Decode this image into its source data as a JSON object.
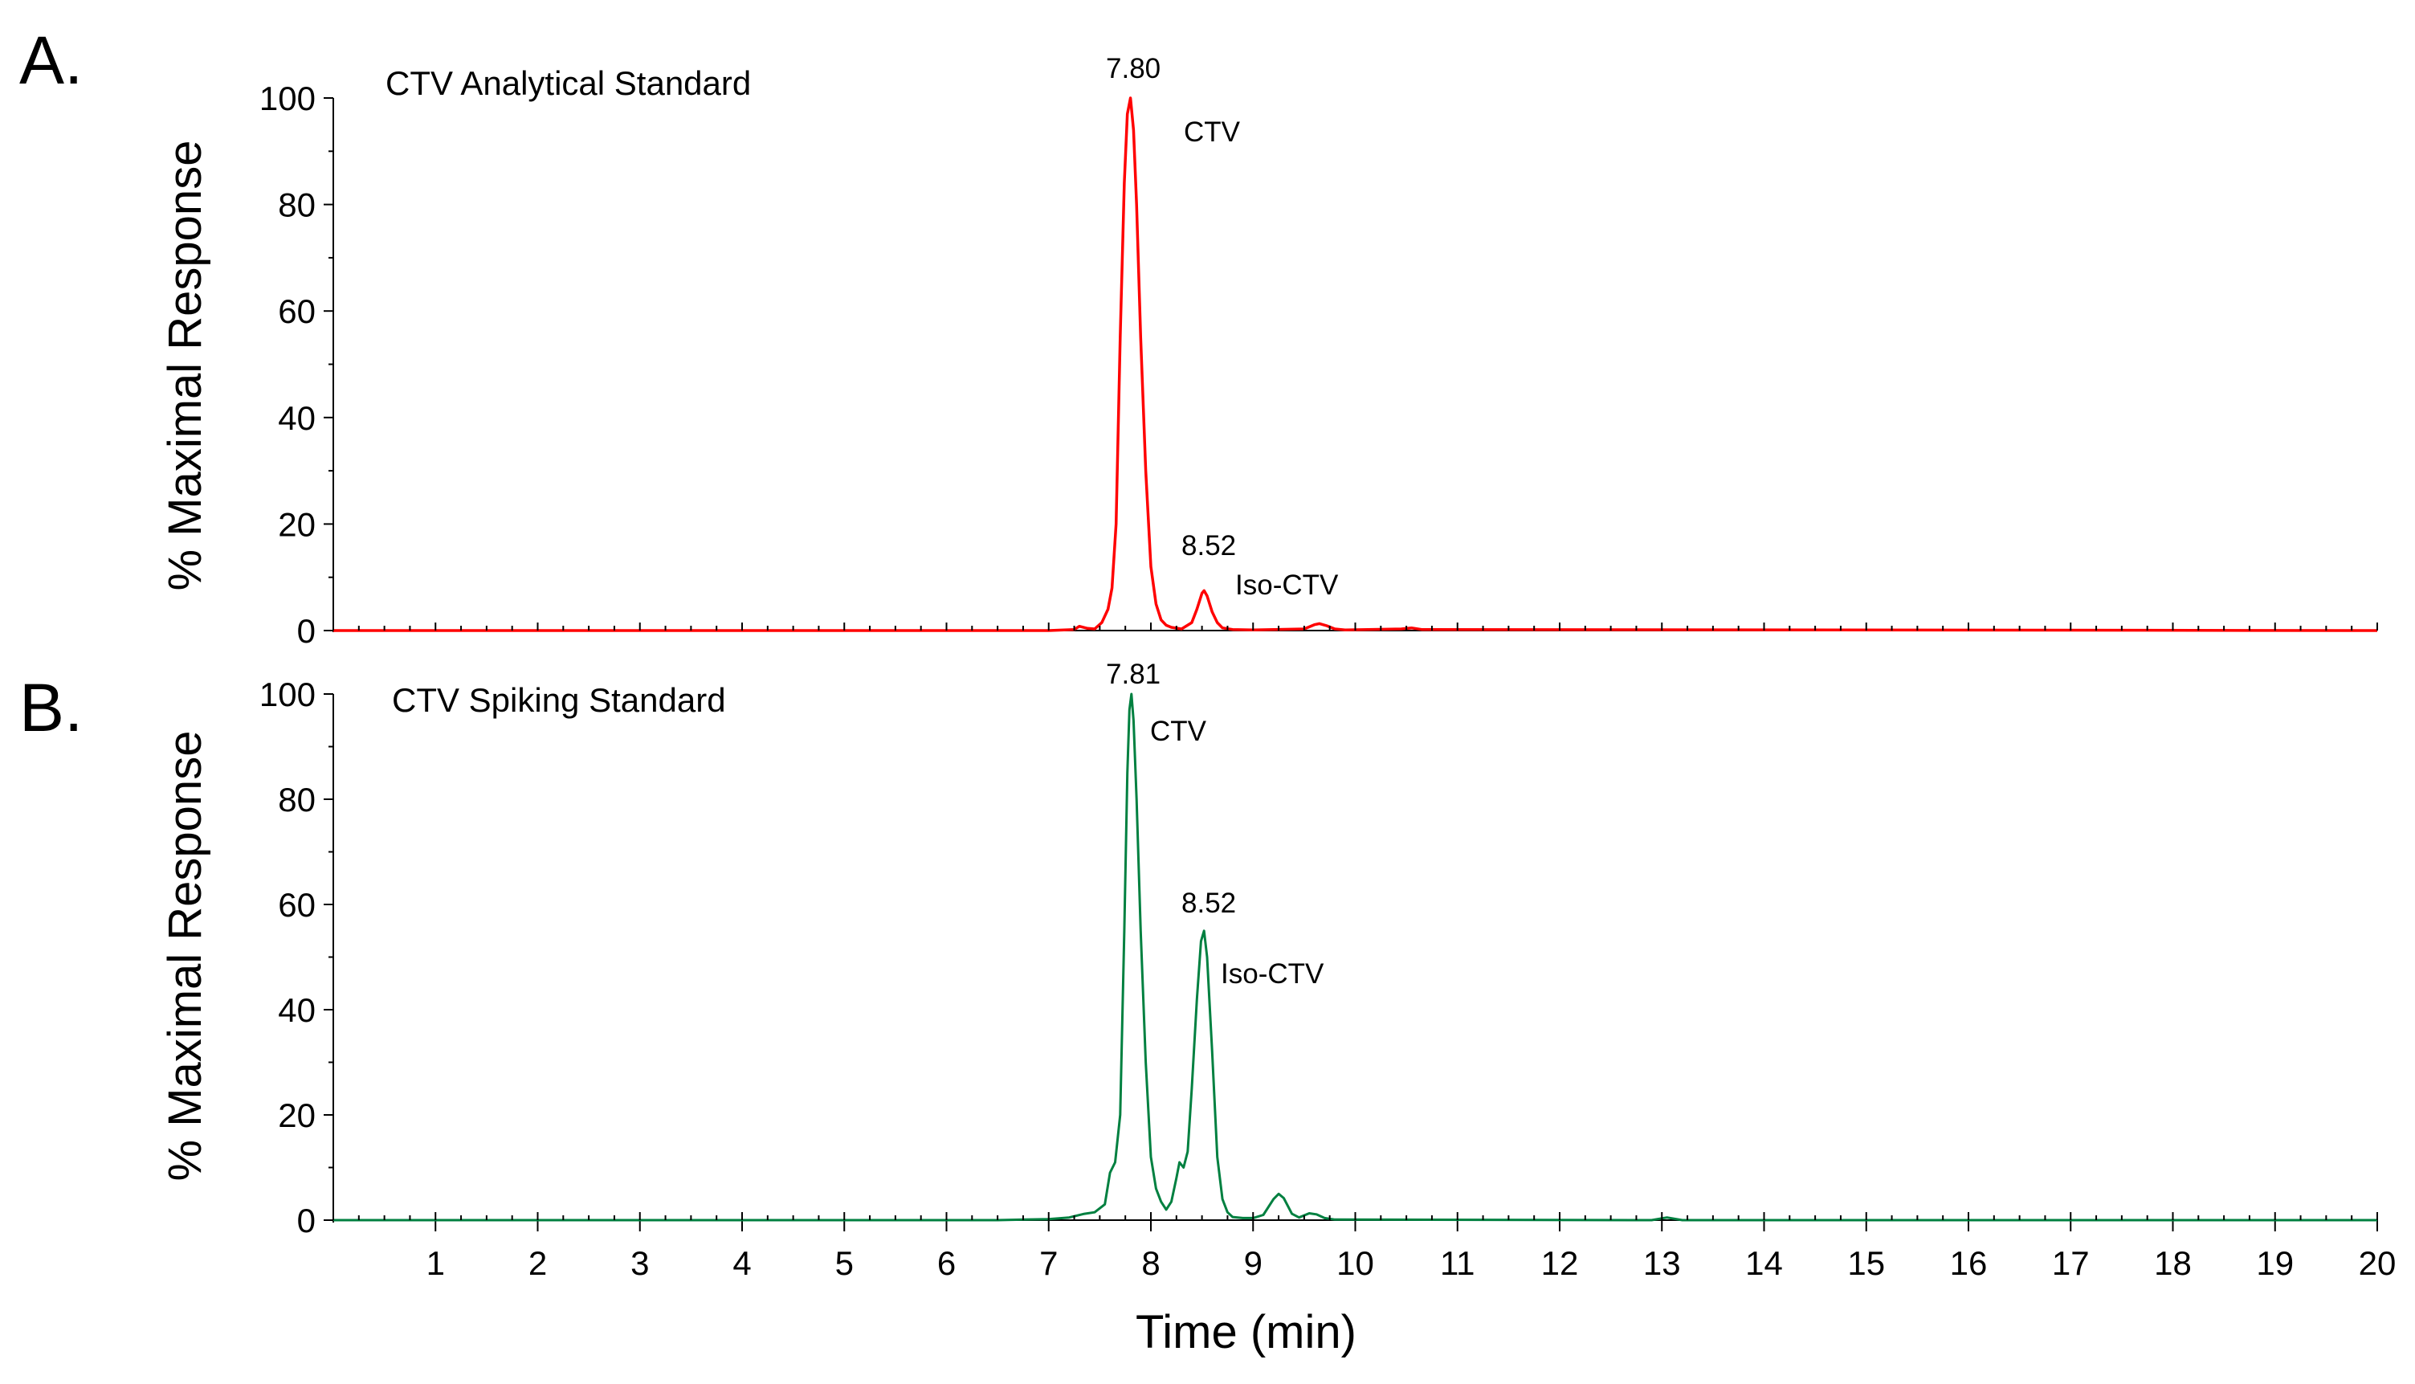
{
  "chart_data": [
    {
      "type": "line",
      "panel_label": "A.",
      "title": "CTV Analytical Standard",
      "xlabel": "",
      "ylabel": "% Maximal Response",
      "xlim": [
        0,
        20
      ],
      "ylim": [
        0,
        100
      ],
      "yticks": [
        0,
        20,
        40,
        60,
        80,
        100
      ],
      "xticks": [],
      "grid": false,
      "legend": "none",
      "series": [
        {
          "color": "#ff0000",
          "x": [
            0,
            7.0,
            7.25,
            7.3,
            7.38,
            7.45,
            7.52,
            7.58,
            7.62,
            7.66,
            7.7,
            7.74,
            7.77,
            7.8,
            7.83,
            7.86,
            7.9,
            7.95,
            8.0,
            8.05,
            8.1,
            8.15,
            8.2,
            8.3,
            8.4,
            8.45,
            8.5,
            8.52,
            8.55,
            8.6,
            8.65,
            8.7,
            8.8,
            9.0,
            9.5,
            9.6,
            9.65,
            9.72,
            9.8,
            9.9,
            10.45,
            10.55,
            10.65,
            20
          ],
          "y": [
            0,
            0,
            0.2,
            0.8,
            0.4,
            0.3,
            1.5,
            4,
            8,
            20,
            55,
            84,
            97,
            100,
            94,
            80,
            55,
            30,
            12,
            5,
            2,
            1,
            0.6,
            0.3,
            1.5,
            4,
            7,
            7.5,
            6.5,
            3.5,
            1.5,
            0.5,
            0.2,
            0.1,
            0.3,
            1.1,
            1.3,
            0.9,
            0.3,
            0.1,
            0.3,
            0.5,
            0.2,
            0
          ]
        }
      ],
      "annotations": [
        {
          "text": "7.80",
          "x": 7.8,
          "y": 100
        },
        {
          "text": "CTV",
          "x": 7.8,
          "y": 94
        },
        {
          "text": "8.52",
          "x": 8.52,
          "y": 7.5
        },
        {
          "text": "Iso-CTV",
          "x": 8.52,
          "y": 7.5
        }
      ]
    },
    {
      "type": "line",
      "panel_label": "B.",
      "title": "CTV Spiking Standard",
      "xlabel": "Time (min)",
      "ylabel": "% Maximal Response",
      "xlim": [
        0,
        20
      ],
      "ylim": [
        0,
        100
      ],
      "yticks": [
        0,
        20,
        40,
        60,
        80,
        100
      ],
      "xticks": [
        1,
        2,
        3,
        4,
        5,
        6,
        7,
        8,
        9,
        10,
        11,
        12,
        13,
        14,
        15,
        16,
        17,
        18,
        19,
        20
      ],
      "grid": false,
      "legend": "none",
      "series": [
        {
          "color": "#008040",
          "x": [
            0,
            6.5,
            7.0,
            7.2,
            7.35,
            7.45,
            7.55,
            7.6,
            7.65,
            7.7,
            7.74,
            7.77,
            7.79,
            7.81,
            7.83,
            7.86,
            7.9,
            7.95,
            8.0,
            8.05,
            8.1,
            8.15,
            8.2,
            8.25,
            8.28,
            8.32,
            8.36,
            8.4,
            8.45,
            8.49,
            8.52,
            8.55,
            8.6,
            8.65,
            8.7,
            8.75,
            8.8,
            8.9,
            9.0,
            9.1,
            9.2,
            9.25,
            9.3,
            9.38,
            9.45,
            9.55,
            9.62,
            9.7,
            9.8,
            12.9,
            13.05,
            13.2,
            20
          ],
          "y": [
            0,
            0,
            0.2,
            0.5,
            1.2,
            1.5,
            3,
            9,
            11,
            20,
            55,
            85,
            97,
            100,
            95,
            80,
            55,
            30,
            12,
            6,
            3.5,
            2,
            3.5,
            8,
            11,
            10,
            13,
            25,
            42,
            53,
            55,
            50,
            32,
            12,
            4,
            1.5,
            0.6,
            0.4,
            0.4,
            1,
            4,
            5,
            4.2,
            1.2,
            0.5,
            1.3,
            1.1,
            0.4,
            0.1,
            0,
            0.5,
            0,
            0
          ]
        }
      ],
      "annotations": [
        {
          "text": "7.81",
          "x": 7.81,
          "y": 100
        },
        {
          "text": "CTV",
          "x": 7.81,
          "y": 95
        },
        {
          "text": "8.52",
          "x": 8.52,
          "y": 55
        },
        {
          "text": "Iso-CTV",
          "x": 8.52,
          "y": 55
        }
      ]
    }
  ]
}
